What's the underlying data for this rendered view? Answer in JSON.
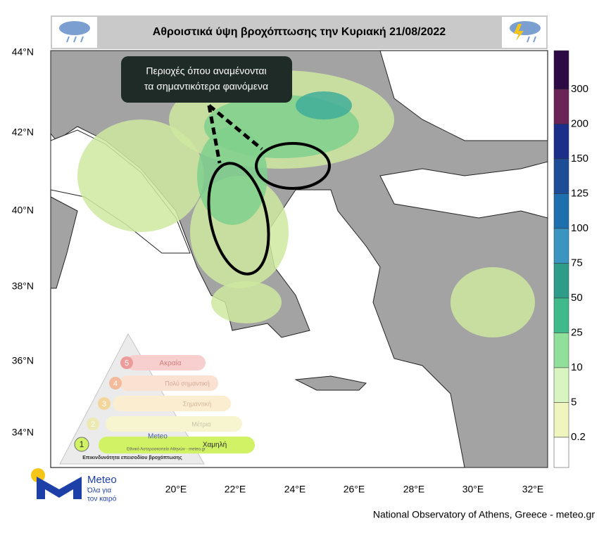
{
  "header": {
    "title": "Αθροιστικά ύψη βροχόπτωσης την Κυριακή 21/08/2022"
  },
  "annotation": {
    "lines": [
      "Περιοχές όπου αναμένονται",
      "τα σημαντικότερα φαινόμενα"
    ]
  },
  "map": {
    "lat_labels": [
      "44°N",
      "42°N",
      "40°N",
      "38°N",
      "36°N",
      "34°N"
    ],
    "lon_labels": [
      "20°E",
      "22°E",
      "24°E",
      "26°E",
      "28°E",
      "30°E",
      "32°E"
    ]
  },
  "colorbar": {
    "labels": [
      "300",
      "200",
      "150",
      "125",
      "100",
      "75",
      "50",
      "25",
      "10",
      "5",
      "0.2"
    ],
    "colors": [
      "#2c0a44",
      "#6a2457",
      "#1b2e8a",
      "#1e4d98",
      "#1e6fae",
      "#3a95c0",
      "#2f9c8a",
      "#40b98b",
      "#90df9b",
      "#d8f5c1",
      "#f0f5c0",
      "#ffffff"
    ]
  },
  "risk_scale": {
    "levels": [
      {
        "number": "5",
        "label": "Ακραία"
      },
      {
        "number": "4",
        "label": "Πολύ σημαντική"
      },
      {
        "number": "3",
        "label": "Σημαντική"
      },
      {
        "number": "2",
        "label": "Μέτρια"
      },
      {
        "number": "1",
        "label": "Χαμηλή"
      }
    ],
    "logo_name": "Meteo",
    "source": "Εθνικό Αστεροσκοπείο Αθηνών - meteo.gr",
    "caption": "Επικινδυνότητα επεισοδίου βροχόπτωσης"
  },
  "logo": {
    "name": "Meteo",
    "tagline_lines": [
      "Όλα για",
      "τον καιρό"
    ]
  },
  "footer": {
    "credit": "National Observatory of Athens, Greece - meteo.gr"
  }
}
